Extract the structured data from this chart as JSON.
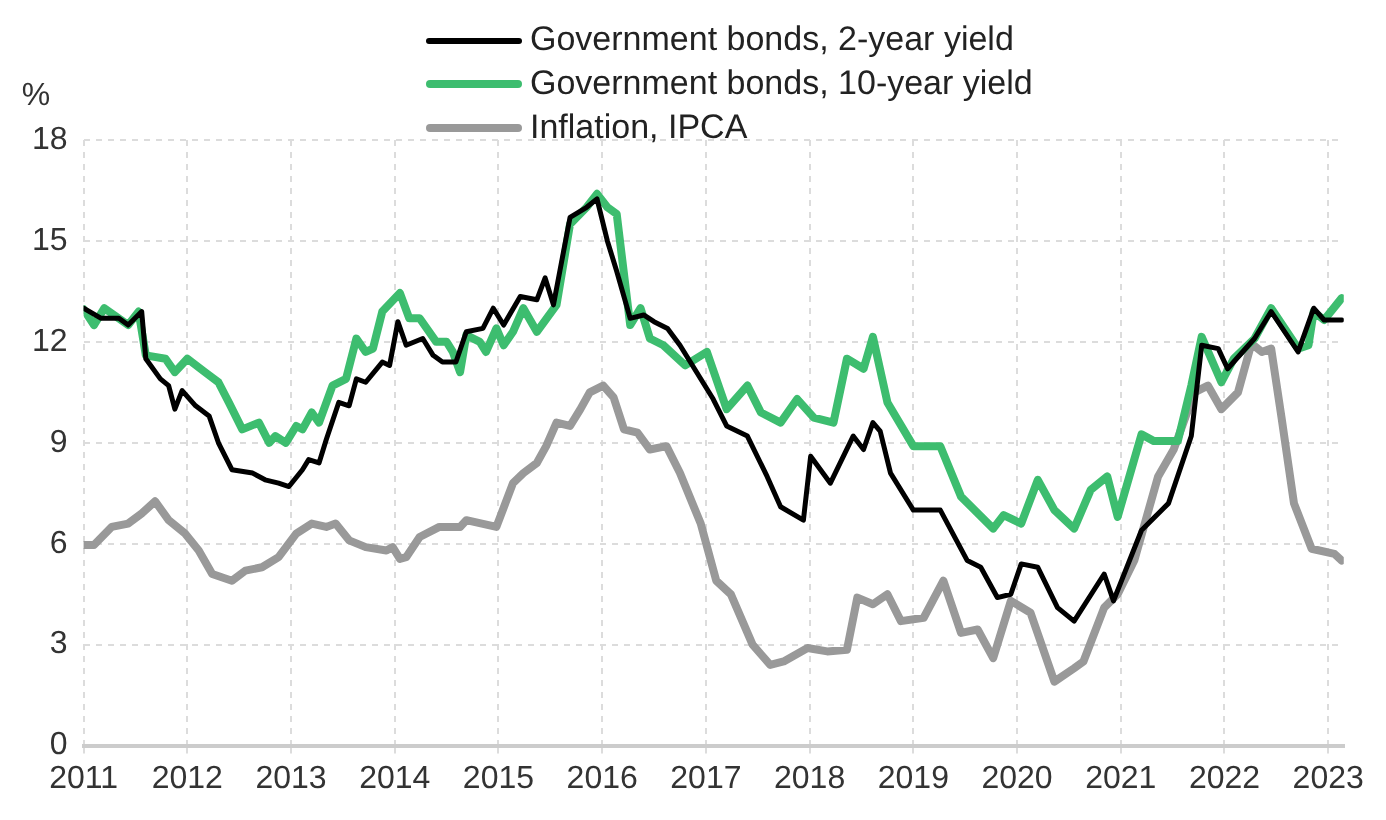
{
  "chart_data": {
    "type": "line",
    "ylabel": "%",
    "xlim": [
      2011,
      2023.15
    ],
    "xticks": [
      2011,
      2012,
      2013,
      2014,
      2015,
      2016,
      2017,
      2018,
      2019,
      2020,
      2021,
      2022,
      2023
    ],
    "ylim": [
      0,
      18
    ],
    "yticks": [
      0,
      3,
      6,
      9,
      12,
      15,
      18
    ],
    "grid": true,
    "legend": "top",
    "marker": "none",
    "line_style": "solid",
    "series": [
      {
        "name": "Government bonds, 2-year yield",
        "color": "#000000",
        "x": [
          2011.0,
          2011.17,
          2011.34,
          2011.43,
          2011.56,
          2011.6,
          2011.74,
          2011.82,
          2011.88,
          2011.95,
          2012.08,
          2012.21,
          2012.3,
          2012.43,
          2012.63,
          2012.75,
          2012.88,
          2012.98,
          2013.11,
          2013.17,
          2013.27,
          2013.34,
          2013.46,
          2013.56,
          2013.63,
          2013.72,
          2013.88,
          2013.95,
          2014.03,
          2014.11,
          2014.27,
          2014.37,
          2014.46,
          2014.59,
          2014.69,
          2014.85,
          2014.95,
          2015.05,
          2015.21,
          2015.37,
          2015.45,
          2015.53,
          2015.69,
          2015.85,
          2015.95,
          2016.05,
          2016.14,
          2016.27,
          2016.4,
          2016.5,
          2016.63,
          2016.75,
          2017.07,
          2017.2,
          2017.4,
          2017.59,
          2017.72,
          2017.94,
          2018.01,
          2018.2,
          2018.42,
          2018.52,
          2018.61,
          2018.68,
          2018.78,
          2019.0,
          2019.26,
          2019.52,
          2019.65,
          2019.81,
          2019.94,
          2020.04,
          2020.2,
          2020.39,
          2020.55,
          2020.84,
          2020.93,
          2021.2,
          2021.46,
          2021.68,
          2021.78,
          2021.94,
          2022.03,
          2022.29,
          2022.45,
          2022.71,
          2022.86,
          2022.96,
          2023.13
        ],
        "values": [
          13.0,
          12.7,
          12.7,
          12.5,
          12.9,
          11.5,
          10.9,
          10.7,
          10.0,
          10.55,
          10.1,
          9.8,
          9.0,
          8.2,
          8.1,
          7.9,
          7.8,
          7.7,
          8.2,
          8.5,
          8.4,
          9.1,
          10.2,
          10.1,
          10.9,
          10.8,
          11.4,
          11.3,
          12.6,
          11.9,
          12.1,
          11.6,
          11.4,
          11.4,
          12.3,
          12.4,
          13.0,
          12.5,
          13.35,
          13.25,
          13.9,
          13.1,
          15.7,
          16.0,
          16.25,
          15.0,
          14.1,
          12.7,
          12.8,
          12.6,
          12.4,
          11.9,
          10.3,
          9.5,
          9.2,
          8.0,
          7.1,
          6.7,
          8.6,
          7.8,
          9.2,
          8.8,
          9.6,
          9.35,
          8.1,
          7.0,
          7.0,
          5.5,
          5.3,
          4.4,
          4.5,
          5.4,
          5.3,
          4.1,
          3.7,
          5.1,
          4.3,
          6.4,
          7.2,
          9.2,
          11.9,
          11.8,
          11.2,
          12.1,
          12.9,
          11.7,
          13.0,
          12.65,
          12.65
        ]
      },
      {
        "name": "Government bonds, 10-year yield",
        "color": "#3dbd6f",
        "x": [
          2011.0,
          2011.1,
          2011.2,
          2011.43,
          2011.53,
          2011.6,
          2011.79,
          2011.88,
          2012.0,
          2012.17,
          2012.3,
          2012.4,
          2012.53,
          2012.69,
          2012.79,
          2012.85,
          2012.95,
          2013.05,
          2013.11,
          2013.2,
          2013.27,
          2013.4,
          2013.53,
          2013.63,
          2013.72,
          2013.79,
          2013.88,
          2014.05,
          2014.14,
          2014.24,
          2014.4,
          2014.5,
          2014.56,
          2014.63,
          2014.69,
          2014.82,
          2014.88,
          2014.98,
          2015.05,
          2015.14,
          2015.24,
          2015.37,
          2015.56,
          2015.69,
          2015.85,
          2015.95,
          2016.05,
          2016.14,
          2016.27,
          2016.37,
          2016.46,
          2016.59,
          2016.8,
          2017.01,
          2017.2,
          2017.4,
          2017.53,
          2017.72,
          2017.88,
          2018.04,
          2018.23,
          2018.36,
          2018.52,
          2018.61,
          2018.75,
          2019.0,
          2019.26,
          2019.46,
          2019.77,
          2019.87,
          2020.04,
          2020.2,
          2020.36,
          2020.55,
          2020.71,
          2020.87,
          2020.97,
          2021.2,
          2021.32,
          2021.55,
          2021.68,
          2021.78,
          2021.97,
          2022.09,
          2022.29,
          2022.45,
          2022.71,
          2022.81,
          2022.86,
          2022.96,
          2023.13
        ],
        "values": [
          12.97,
          12.5,
          13.0,
          12.5,
          12.9,
          11.6,
          11.5,
          11.1,
          11.5,
          11.1,
          10.8,
          10.2,
          9.4,
          9.6,
          9.0,
          9.2,
          9.0,
          9.5,
          9.4,
          9.9,
          9.6,
          10.7,
          10.9,
          12.1,
          11.7,
          11.8,
          12.9,
          13.45,
          12.7,
          12.7,
          12.0,
          12.0,
          11.7,
          11.1,
          12.2,
          12.0,
          11.7,
          12.4,
          11.9,
          12.3,
          13.0,
          12.3,
          13.1,
          15.5,
          16.0,
          16.4,
          16.0,
          15.8,
          12.5,
          13.0,
          12.1,
          11.9,
          11.3,
          11.7,
          10.0,
          10.7,
          9.9,
          9.6,
          10.3,
          9.75,
          9.6,
          11.5,
          11.2,
          12.15,
          10.2,
          8.9,
          8.9,
          7.4,
          6.45,
          6.85,
          6.6,
          7.9,
          7.0,
          6.45,
          7.6,
          8.0,
          6.8,
          9.25,
          9.05,
          9.05,
          10.7,
          12.15,
          10.8,
          11.5,
          12.1,
          13.0,
          11.8,
          11.9,
          12.9,
          12.65,
          13.3
        ]
      },
      {
        "name": "Inflation, IPCA",
        "color": "#999999",
        "x": [
          2011.0,
          2011.1,
          2011.27,
          2011.43,
          2011.56,
          2011.69,
          2011.82,
          2011.98,
          2012.11,
          2012.24,
          2012.43,
          2012.56,
          2012.72,
          2012.88,
          2013.05,
          2013.2,
          2013.34,
          2013.43,
          2013.56,
          2013.72,
          2013.92,
          2013.98,
          2014.05,
          2014.11,
          2014.24,
          2014.43,
          2014.63,
          2014.69,
          2014.98,
          2015.14,
          2015.24,
          2015.37,
          2015.46,
          2015.56,
          2015.69,
          2015.79,
          2015.88,
          2016.01,
          2016.11,
          2016.21,
          2016.34,
          2016.46,
          2016.62,
          2016.75,
          2016.95,
          2017.1,
          2017.24,
          2017.45,
          2017.62,
          2017.75,
          2017.98,
          2018.17,
          2018.36,
          2018.46,
          2018.61,
          2018.75,
          2018.88,
          2019.1,
          2019.29,
          2019.46,
          2019.62,
          2019.77,
          2019.94,
          2020.13,
          2020.36,
          2020.55,
          2020.64,
          2020.84,
          2020.97,
          2021.13,
          2021.36,
          2021.51,
          2021.71,
          2021.84,
          2021.97,
          2022.13,
          2022.26,
          2022.36,
          2022.45,
          2022.55,
          2022.67,
          2022.84,
          2023.06,
          2023.13
        ],
        "values": [
          5.96,
          5.96,
          6.5,
          6.6,
          6.9,
          7.26,
          6.7,
          6.3,
          5.8,
          5.1,
          4.9,
          5.2,
          5.3,
          5.6,
          6.3,
          6.6,
          6.5,
          6.6,
          6.1,
          5.9,
          5.8,
          5.9,
          5.55,
          5.6,
          6.2,
          6.5,
          6.5,
          6.7,
          6.5,
          7.8,
          8.1,
          8.4,
          8.9,
          9.6,
          9.5,
          10.0,
          10.5,
          10.7,
          10.35,
          9.4,
          9.3,
          8.8,
          8.9,
          8.1,
          6.6,
          4.9,
          4.5,
          3.0,
          2.4,
          2.5,
          2.9,
          2.8,
          2.85,
          4.4,
          4.2,
          4.5,
          3.7,
          3.8,
          4.9,
          3.35,
          3.45,
          2.6,
          4.3,
          3.95,
          1.9,
          2.3,
          2.5,
          4.1,
          4.5,
          5.5,
          8.0,
          8.8,
          10.5,
          10.7,
          10.0,
          10.5,
          11.95,
          11.7,
          11.8,
          9.75,
          7.2,
          5.85,
          5.7,
          5.5
        ]
      }
    ]
  }
}
